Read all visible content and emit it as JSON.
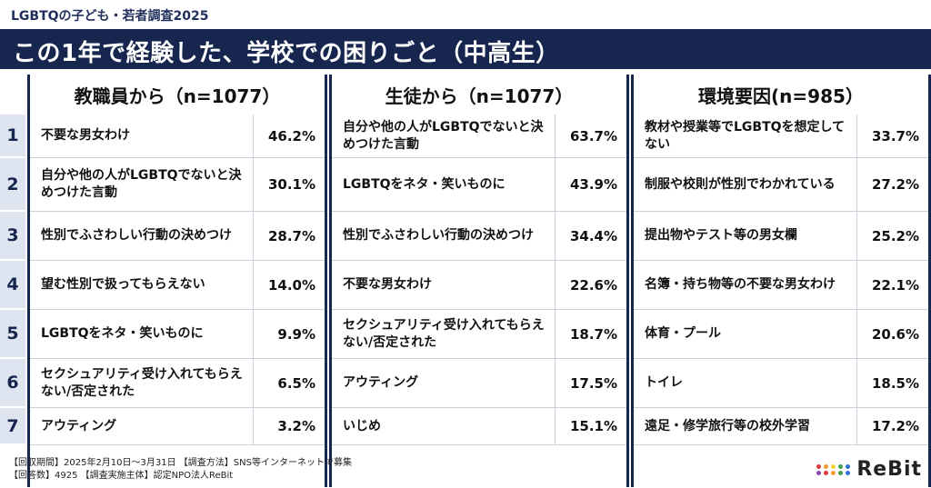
{
  "survey_label": "LGBTQの子ども・若者調査2025",
  "title": "この1年で経験した、学校での困りごと（中高生）",
  "columns": [
    {
      "header": "教職員から（n=1077）",
      "rows": [
        {
          "text": "不要な男女わけ",
          "pct": "46.2%"
        },
        {
          "text": "自分や他の人がLGBTQでないと決めつけた言動",
          "pct": "30.1%"
        },
        {
          "text": "性別でふさわしい行動の決めつけ",
          "pct": "28.7%"
        },
        {
          "text": "望む性別で扱ってもらえない",
          "pct": "14.0%"
        },
        {
          "text": "LGBTQをネタ・笑いものに",
          "pct": "9.9%"
        },
        {
          "text": "セクシュアリティ受け入れてもらえない/否定された",
          "pct": "6.5%"
        },
        {
          "text": "アウティング",
          "pct": "3.2%"
        }
      ]
    },
    {
      "header": "生徒から（n=1077）",
      "rows": [
        {
          "text": "自分や他の人がLGBTQでないと決めつけた言動",
          "pct": "63.7%"
        },
        {
          "text": "LGBTQをネタ・笑いものに",
          "pct": "43.9%"
        },
        {
          "text": "性別でふさわしい行動の決めつけ",
          "pct": "34.4%"
        },
        {
          "text": "不要な男女わけ",
          "pct": "22.6%"
        },
        {
          "text": "セクシュアリティ受け入れてもらえない/否定された",
          "pct": "18.7%"
        },
        {
          "text": "アウティング",
          "pct": "17.5%"
        },
        {
          "text": "いじめ",
          "pct": "15.1%"
        }
      ]
    },
    {
      "header": "環境要因(n=985）",
      "rows": [
        {
          "text": "教材や授業等でLGBTQを想定してない",
          "pct": "33.7%"
        },
        {
          "text": "制服や校則が性別でわかれている",
          "pct": "27.2%"
        },
        {
          "text": "提出物やテスト等の男女欄",
          "pct": "25.2%"
        },
        {
          "text": "名簿・持ち物等の不要な男女わけ",
          "pct": "22.1%"
        },
        {
          "text": "体育・プール",
          "pct": "20.6%"
        },
        {
          "text": "トイレ",
          "pct": "18.5%"
        },
        {
          "text": "遠足・修学旅行等の校外学習",
          "pct": "17.2%"
        }
      ]
    }
  ],
  "ranks": [
    "1",
    "2",
    "3",
    "4",
    "5",
    "6",
    "7"
  ],
  "footer": {
    "line1": "【回収期間】2025年2月10日～3月31日 【調査方法】SNS等インターネットで募集",
    "line2": "【回答数】4925 【調査実施主体】認定NPO法人ReBit"
  },
  "logo": {
    "text": "ReBit",
    "dot_colors": [
      "#e23b3b",
      "#f29b30",
      "#f5d230",
      "#43a047",
      "#2f6fd6",
      "#8e44ad",
      "#e23b3b",
      "#f29b30",
      "#43a047",
      "#2f6fd6"
    ]
  },
  "colors": {
    "navy": "#16264f",
    "rank_bg": "#dfe5f0"
  }
}
